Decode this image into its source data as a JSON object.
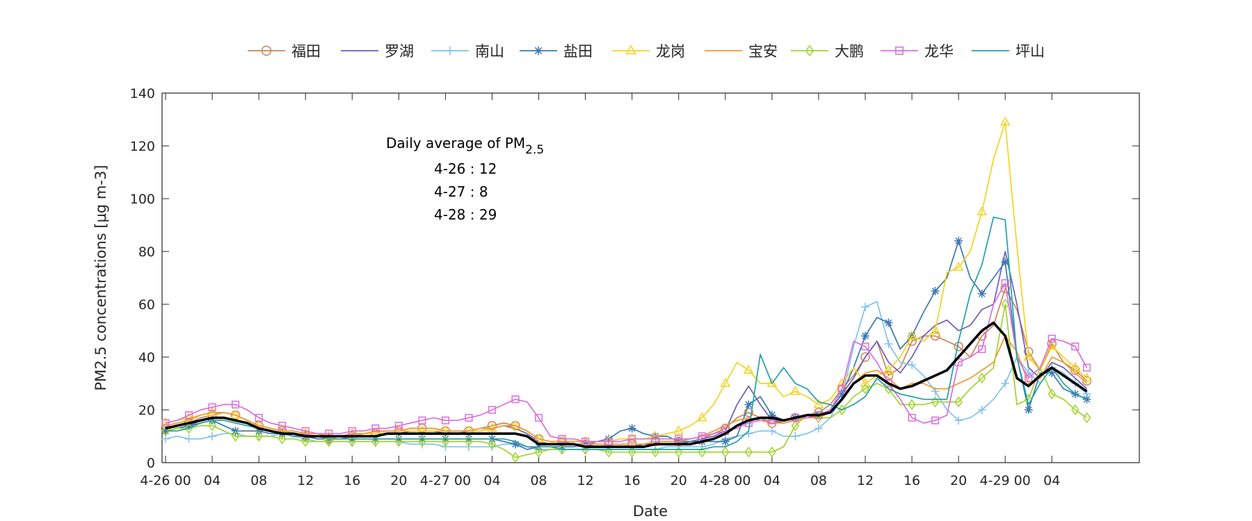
{
  "chart_data": {
    "type": "line",
    "xlabel": "Date",
    "ylabel": "PM2.5 concentrations [μg m-3]",
    "ylim": [
      0,
      140
    ],
    "yticks": [
      0,
      20,
      40,
      60,
      80,
      100,
      120,
      140
    ],
    "xlim": [
      0,
      71
    ],
    "xticks": [
      {
        "x": 0,
        "label": "4-26 00"
      },
      {
        "x": 4,
        "label": "04"
      },
      {
        "x": 8,
        "label": "08"
      },
      {
        "x": 12,
        "label": "12"
      },
      {
        "x": 16,
        "label": "16"
      },
      {
        "x": 20,
        "label": "20"
      },
      {
        "x": 24,
        "label": "4-27 00"
      },
      {
        "x": 28,
        "label": "04"
      },
      {
        "x": 32,
        "label": "08"
      },
      {
        "x": 36,
        "label": "12"
      },
      {
        "x": 40,
        "label": "16"
      },
      {
        "x": 44,
        "label": "20"
      },
      {
        "x": 48,
        "label": "4-28 00"
      },
      {
        "x": 52,
        "label": "04"
      },
      {
        "x": 56,
        "label": "08"
      },
      {
        "x": 60,
        "label": "12"
      },
      {
        "x": 64,
        "label": "16"
      },
      {
        "x": 68,
        "label": "20"
      },
      {
        "x": 72,
        "label": "4-29 00"
      },
      {
        "x": 76,
        "label": "04"
      }
    ],
    "legend_position": "top, horizontal",
    "grid": false,
    "annotation": {
      "title_main": "Daily average of PM",
      "title_sub": "2.5",
      "lines": [
        "4-26 : 12",
        "4-27 : 8",
        "4-28 : 29"
      ]
    },
    "series": [
      {
        "name": "福田",
        "color": "#c8875a",
        "marker": "circle",
        "values": [
          13,
          14,
          15,
          17,
          18,
          19,
          18,
          16,
          14,
          13,
          12,
          11,
          10,
          10,
          9,
          10,
          10,
          11,
          11,
          12,
          12,
          13,
          13,
          13,
          12,
          12,
          12,
          13,
          14,
          15,
          14,
          12,
          9,
          8,
          8,
          7,
          7,
          7,
          7,
          7,
          7,
          7,
          8,
          8,
          8,
          8,
          9,
          11,
          13,
          17,
          19,
          17,
          15,
          16,
          17,
          18,
          19,
          22,
          28,
          33,
          40,
          46,
          33,
          36,
          46,
          48,
          48,
          46,
          44,
          40,
          48,
          52,
          66,
          58,
          42,
          35,
          45,
          38,
          35,
          31
        ]
      },
      {
        "name": "罗湖",
        "color": "#6c5bbd",
        "marker": "none",
        "values": [
          12,
          13,
          14,
          16,
          17,
          17,
          16,
          15,
          13,
          12,
          11,
          10,
          10,
          9,
          9,
          9,
          10,
          10,
          10,
          11,
          11,
          12,
          12,
          12,
          11,
          11,
          12,
          12,
          13,
          14,
          13,
          11,
          8,
          7,
          7,
          7,
          7,
          6,
          6,
          6,
          6,
          7,
          7,
          7,
          7,
          8,
          9,
          10,
          12,
          22,
          29,
          22,
          16,
          15,
          16,
          17,
          18,
          20,
          26,
          32,
          40,
          46,
          38,
          34,
          40,
          48,
          52,
          54,
          50,
          52,
          58,
          60,
          80,
          60,
          36,
          32,
          38,
          36,
          32,
          28
        ]
      },
      {
        "name": "南山",
        "color": "#80c2f0",
        "marker": "plus",
        "values": [
          9,
          10,
          9,
          9,
          10,
          11,
          11,
          10,
          10,
          10,
          11,
          10,
          9,
          8,
          8,
          8,
          8,
          8,
          8,
          8,
          8,
          7,
          7,
          7,
          6,
          6,
          6,
          6,
          6,
          7,
          7,
          6,
          5,
          5,
          5,
          5,
          5,
          5,
          5,
          5,
          5,
          5,
          5,
          6,
          6,
          6,
          6,
          7,
          9,
          10,
          11,
          12,
          12,
          10,
          10,
          11,
          13,
          17,
          25,
          44,
          59,
          61,
          45,
          38,
          37,
          33,
          27,
          20,
          16,
          17,
          20,
          24,
          30,
          40,
          34,
          30,
          36,
          34,
          30,
          26
        ]
      },
      {
        "name": "盐田",
        "color": "#3a78b0",
        "marker": "star",
        "values": [
          12,
          13,
          14,
          15,
          16,
          14,
          12,
          12,
          12,
          11,
          11,
          10,
          10,
          9,
          9,
          9,
          9,
          9,
          9,
          9,
          9,
          9,
          9,
          9,
          9,
          9,
          9,
          9,
          9,
          8,
          7,
          5,
          6,
          6,
          6,
          6,
          7,
          8,
          9,
          12,
          13,
          11,
          10,
          10,
          8,
          8,
          8,
          8,
          8,
          10,
          22,
          25,
          18,
          16,
          17,
          18,
          18,
          20,
          26,
          36,
          48,
          55,
          53,
          43,
          48,
          57,
          65,
          70,
          84,
          70,
          64,
          70,
          76,
          40,
          20,
          34,
          34,
          28,
          26,
          24
        ]
      },
      {
        "name": "龙岗",
        "color": "#f5d21e",
        "marker": "triangle",
        "values": [
          15,
          16,
          17,
          18,
          19,
          19,
          18,
          16,
          14,
          13,
          12,
          11,
          11,
          10,
          10,
          10,
          11,
          11,
          11,
          12,
          12,
          12,
          12,
          12,
          12,
          12,
          12,
          12,
          13,
          14,
          14,
          12,
          9,
          8,
          8,
          8,
          8,
          8,
          8,
          9,
          9,
          9,
          10,
          11,
          12,
          14,
          17,
          22,
          30,
          38,
          35,
          30,
          30,
          25,
          27,
          25,
          22,
          24,
          30,
          36,
          30,
          33,
          35,
          40,
          48,
          46,
          50,
          72,
          74,
          80,
          95,
          115,
          129,
          82,
          40,
          35,
          44,
          40,
          36,
          32
        ]
      },
      {
        "name": "宝安",
        "color": "#f59628",
        "marker": "none",
        "values": [
          14,
          15,
          16,
          18,
          19,
          19,
          18,
          16,
          14,
          13,
          12,
          12,
          11,
          11,
          10,
          10,
          11,
          11,
          12,
          12,
          12,
          13,
          13,
          13,
          12,
          12,
          12,
          13,
          13,
          14,
          14,
          12,
          9,
          8,
          8,
          8,
          8,
          7,
          7,
          7,
          7,
          7,
          8,
          8,
          8,
          9,
          10,
          12,
          14,
          16,
          17,
          16,
          15,
          15,
          16,
          17,
          17,
          19,
          24,
          30,
          34,
          35,
          32,
          28,
          30,
          30,
          28,
          28,
          30,
          32,
          35,
          38,
          48,
          42,
          30,
          32,
          40,
          38,
          34,
          30
        ]
      },
      {
        "name": "大鹏",
        "color": "#a0d42d",
        "marker": "diamond",
        "values": [
          12,
          13,
          13,
          14,
          14,
          12,
          10,
          10,
          10,
          10,
          9,
          9,
          8,
          8,
          8,
          8,
          8,
          8,
          8,
          8,
          8,
          8,
          8,
          8,
          8,
          8,
          8,
          8,
          7,
          5,
          2,
          3,
          4,
          5,
          5,
          5,
          5,
          5,
          4,
          4,
          4,
          4,
          4,
          4,
          4,
          4,
          4,
          4,
          4,
          4,
          4,
          4,
          4,
          6,
          14,
          18,
          17,
          17,
          20,
          25,
          28,
          30,
          28,
          22,
          22,
          22,
          23,
          23,
          23,
          28,
          32,
          36,
          60,
          22,
          24,
          36,
          26,
          24,
          20,
          17
        ]
      },
      {
        "name": "龙华",
        "color": "#dc6edc",
        "marker": "square",
        "values": [
          15,
          16,
          18,
          20,
          21,
          22,
          22,
          20,
          17,
          15,
          14,
          13,
          12,
          11,
          11,
          11,
          12,
          12,
          13,
          13,
          14,
          15,
          16,
          17,
          16,
          16,
          17,
          18,
          20,
          22,
          24,
          23,
          17,
          10,
          9,
          9,
          8,
          8,
          8,
          8,
          9,
          9,
          9,
          9,
          9,
          9,
          10,
          11,
          12,
          13,
          15,
          16,
          16,
          16,
          17,
          17,
          18,
          20,
          28,
          46,
          44,
          38,
          30,
          24,
          17,
          15,
          16,
          18,
          38,
          40,
          43,
          60,
          68,
          40,
          32,
          36,
          47,
          46,
          44,
          36
        ]
      },
      {
        "name": "坪山",
        "color": "#21a0a8",
        "marker": "none",
        "values": [
          12,
          12,
          13,
          15,
          16,
          16,
          15,
          14,
          13,
          12,
          11,
          10,
          10,
          10,
          9,
          9,
          9,
          9,
          9,
          9,
          9,
          9,
          9,
          9,
          9,
          9,
          9,
          9,
          9,
          9,
          8,
          6,
          6,
          6,
          5,
          5,
          5,
          5,
          5,
          5,
          5,
          5,
          5,
          5,
          5,
          5,
          5,
          6,
          6,
          8,
          12,
          41,
          30,
          36,
          30,
          28,
          23,
          22,
          20,
          22,
          25,
          32,
          28,
          26,
          25,
          24,
          24,
          24,
          46,
          64,
          75,
          93,
          92,
          40,
          22,
          30,
          36,
          30,
          26,
          24
        ]
      },
      {
        "name": "",
        "color": "#000000",
        "marker": "none",
        "values": [
          13,
          14,
          15,
          16,
          17,
          17,
          16,
          15,
          13,
          12,
          11,
          11,
          10,
          10,
          10,
          10,
          10,
          10,
          10,
          11,
          11,
          11,
          11,
          11,
          11,
          11,
          11,
          11,
          11,
          11,
          11,
          10,
          7,
          7,
          7,
          7,
          6,
          6,
          6,
          6,
          6,
          6,
          7,
          7,
          7,
          7,
          8,
          9,
          11,
          14,
          16,
          17,
          17,
          16,
          17,
          18,
          18,
          19,
          24,
          30,
          33,
          33,
          30,
          28,
          29,
          31,
          33,
          35,
          40,
          45,
          50,
          53,
          48,
          32,
          29,
          33,
          36,
          33,
          30,
          27
        ]
      }
    ]
  }
}
